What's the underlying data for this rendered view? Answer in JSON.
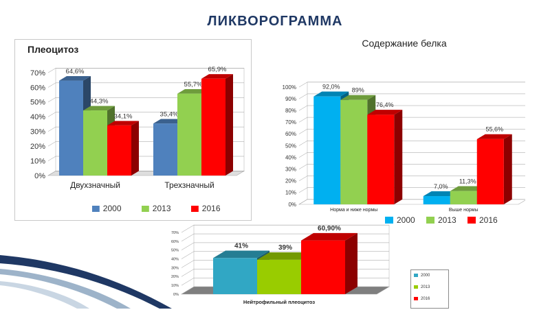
{
  "page": {
    "title": "ЛИКВОРОГРАММА",
    "colors": {
      "title": "#1f3864",
      "deco_dark": "#1f3864",
      "deco_light": "#9db3c9"
    }
  },
  "chart_data": [
    {
      "type": "bar",
      "title": "Плеоцитоз",
      "categories": [
        "Двухзначный",
        "Трехзначный"
      ],
      "series": [
        {
          "name": "2000",
          "values": [
            64.6,
            35.4
          ],
          "labels": [
            "64,6%",
            "35,4%"
          ],
          "color": "#4f81bd"
        },
        {
          "name": "2013",
          "values": [
            44.3,
            55.7
          ],
          "labels": [
            "44,3%",
            "55,7%"
          ],
          "color": "#92d050"
        },
        {
          "name": "2016",
          "values": [
            34.1,
            65.9
          ],
          "labels": [
            "34,1%",
            "65,9%"
          ],
          "color": "#ff0000"
        }
      ],
      "ylim": [
        0,
        70
      ],
      "ytick_labels": [
        "0%",
        "10%",
        "20%",
        "30%",
        "40%",
        "50%",
        "60%",
        "70%"
      ],
      "grid": true,
      "legend": "bottom"
    },
    {
      "type": "bar",
      "title": "Содержание белка",
      "categories": [
        "Норма и ниже нормы",
        "Выше нормы"
      ],
      "series": [
        {
          "name": "2000",
          "values": [
            92.0,
            7.0
          ],
          "labels": [
            "92,0%",
            "7,0%"
          ],
          "color": "#00b0f0"
        },
        {
          "name": "2013",
          "values": [
            89.0,
            11.3
          ],
          "labels": [
            "89%",
            "11,3%"
          ],
          "color": "#92d050"
        },
        {
          "name": "2016",
          "values": [
            76.4,
            55.6
          ],
          "labels": [
            "76,4%",
            "55,6%"
          ],
          "color": "#ff0000"
        }
      ],
      "ylim": [
        0,
        100
      ],
      "ytick_labels": [
        "0%",
        "10%",
        "20%",
        "30%",
        "40%",
        "50%",
        "60%",
        "70%",
        "80%",
        "90%",
        "100%"
      ],
      "grid": true,
      "legend": "bottom"
    },
    {
      "type": "bar",
      "title": "",
      "categories": [
        "Нейтрофильный   плеоцитоз"
      ],
      "series": [
        {
          "name": "2000",
          "values": [
            41
          ],
          "labels": [
            "41%"
          ],
          "color": "#31a7c4"
        },
        {
          "name": "2013",
          "values": [
            39
          ],
          "labels": [
            "39%"
          ],
          "color": "#99cc00"
        },
        {
          "name": "2016",
          "values": [
            60.9
          ],
          "labels": [
            "60,90%"
          ],
          "color": "#ff0000"
        }
      ],
      "ylim": [
        0,
        70
      ],
      "ytick_labels": [
        "0%",
        "10%",
        "20%",
        "30%",
        "40%",
        "50%",
        "60%",
        "70%"
      ],
      "grid": true,
      "legend": "right"
    }
  ]
}
